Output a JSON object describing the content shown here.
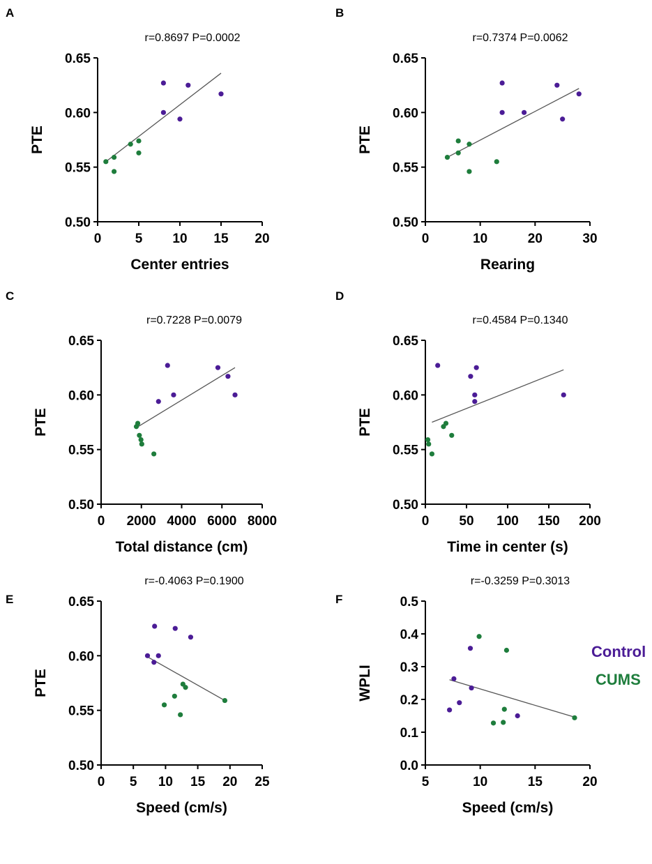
{
  "colors": {
    "control": "#4B1C96",
    "cums": "#1E7D3C",
    "fit_line": "#555555",
    "axis": "#000000"
  },
  "legend": [
    {
      "label": "Control",
      "color": "#4B1C96"
    },
    {
      "label": "CUMS",
      "color": "#1E7D3C"
    }
  ],
  "chart_data": [
    {
      "panel": "A",
      "type": "scatter",
      "title": "r=0.8697   P=0.0002",
      "xlabel": "Center entries",
      "ylabel": "PTE",
      "xlim": [
        0,
        20
      ],
      "ylim": [
        0.5,
        0.65
      ],
      "xticks": [
        0,
        5,
        10,
        15,
        20
      ],
      "yticks": [
        0.5,
        0.55,
        0.6,
        0.65
      ],
      "xtick_labels": [
        "0",
        "5",
        "10",
        "15",
        "20"
      ],
      "ytick_labels": [
        "0.50",
        "0.55",
        "0.60",
        "0.65"
      ],
      "series": [
        {
          "name": "Control",
          "x": [
            8,
            8,
            10,
            11,
            15
          ],
          "y": [
            0.627,
            0.6,
            0.594,
            0.625,
            0.617
          ]
        },
        {
          "name": "CUMS",
          "x": [
            1,
            2,
            2,
            4,
            5,
            5
          ],
          "y": [
            0.555,
            0.559,
            0.546,
            0.571,
            0.574,
            0.563
          ]
        }
      ],
      "fit": {
        "x": [
          1,
          15
        ],
        "y": [
          0.555,
          0.636
        ]
      }
    },
    {
      "panel": "B",
      "type": "scatter",
      "title": "r=0.7374   P=0.0062",
      "xlabel": "Rearing",
      "ylabel": "PTE",
      "xlim": [
        0,
        30
      ],
      "ylim": [
        0.5,
        0.65
      ],
      "xticks": [
        0,
        10,
        20,
        30
      ],
      "yticks": [
        0.5,
        0.55,
        0.6,
        0.65
      ],
      "xtick_labels": [
        "0",
        "10",
        "20",
        "30"
      ],
      "ytick_labels": [
        "0.50",
        "0.55",
        "0.60",
        "0.65"
      ],
      "series": [
        {
          "name": "Control",
          "x": [
            14,
            14,
            18,
            24,
            25,
            28
          ],
          "y": [
            0.627,
            0.6,
            0.6,
            0.625,
            0.594,
            0.617
          ]
        },
        {
          "name": "CUMS",
          "x": [
            4,
            6,
            6,
            8,
            8,
            13
          ],
          "y": [
            0.559,
            0.574,
            0.563,
            0.571,
            0.546,
            0.555
          ]
        }
      ],
      "fit": {
        "x": [
          4,
          28
        ],
        "y": [
          0.559,
          0.622
        ]
      }
    },
    {
      "panel": "C",
      "type": "scatter",
      "title": "r=0.7228   P=0.0079",
      "xlabel": "Total distance (cm)",
      "ylabel": "PTE",
      "xlim": [
        0,
        8000
      ],
      "ylim": [
        0.5,
        0.65
      ],
      "xticks": [
        0,
        2000,
        4000,
        6000,
        8000
      ],
      "yticks": [
        0.5,
        0.55,
        0.6,
        0.65
      ],
      "xtick_labels": [
        "0",
        "2000",
        "4000",
        "6000",
        "8000"
      ],
      "ytick_labels": [
        "0.50",
        "0.55",
        "0.60",
        "0.65"
      ],
      "series": [
        {
          "name": "Control",
          "x": [
            3300,
            2850,
            3600,
            5800,
            6300,
            6650
          ],
          "y": [
            0.627,
            0.594,
            0.6,
            0.625,
            0.617,
            0.6
          ]
        },
        {
          "name": "CUMS",
          "x": [
            1750,
            1820,
            1900,
            1980,
            2020,
            2620
          ],
          "y": [
            0.571,
            0.574,
            0.563,
            0.559,
            0.555,
            0.546
          ]
        }
      ],
      "fit": {
        "x": [
          1750,
          6650
        ],
        "y": [
          0.57,
          0.625
        ]
      }
    },
    {
      "panel": "D",
      "type": "scatter",
      "title": "r=0.4584   P=0.1340",
      "xlabel": "Time in center (s)",
      "ylabel": "PTE",
      "xlim": [
        0,
        200
      ],
      "ylim": [
        0.5,
        0.65
      ],
      "xticks": [
        0,
        50,
        100,
        150,
        200
      ],
      "yticks": [
        0.5,
        0.55,
        0.6,
        0.65
      ],
      "xtick_labels": [
        "0",
        "50",
        "100",
        "150",
        "200"
      ],
      "ytick_labels": [
        "0.50",
        "0.55",
        "0.60",
        "0.65"
      ],
      "series": [
        {
          "name": "Control",
          "x": [
            15,
            55,
            60,
            60,
            62,
            168
          ],
          "y": [
            0.627,
            0.617,
            0.6,
            0.594,
            0.625,
            0.6
          ]
        },
        {
          "name": "CUMS",
          "x": [
            3,
            4,
            8,
            22,
            25,
            32
          ],
          "y": [
            0.559,
            0.555,
            0.546,
            0.571,
            0.574,
            0.563
          ]
        }
      ],
      "fit": {
        "x": [
          8,
          168
        ],
        "y": [
          0.575,
          0.623
        ]
      }
    },
    {
      "panel": "E",
      "type": "scatter",
      "title": "r=-0.4063   P=0.1900",
      "xlabel": "Speed (cm/s)",
      "ylabel": "PTE",
      "xlim": [
        0,
        25
      ],
      "ylim": [
        0.5,
        0.65
      ],
      "xticks": [
        0,
        5,
        10,
        15,
        20,
        25
      ],
      "yticks": [
        0.5,
        0.55,
        0.6,
        0.65
      ],
      "xtick_labels": [
        "0",
        "5",
        "10",
        "15",
        "20",
        "25"
      ],
      "ytick_labels": [
        "0.50",
        "0.55",
        "0.60",
        "0.65"
      ],
      "series": [
        {
          "name": "Control",
          "x": [
            7.2,
            8.2,
            8.3,
            8.9,
            11.5,
            13.9
          ],
          "y": [
            0.6,
            0.594,
            0.627,
            0.6,
            0.625,
            0.617
          ]
        },
        {
          "name": "CUMS",
          "x": [
            9.8,
            11.4,
            12.3,
            12.7,
            13.1,
            19.2
          ],
          "y": [
            0.555,
            0.563,
            0.546,
            0.574,
            0.571,
            0.559
          ]
        }
      ],
      "fit": {
        "x": [
          7.2,
          19.2
        ],
        "y": [
          0.599,
          0.559
        ]
      }
    },
    {
      "panel": "F",
      "type": "scatter",
      "title": "r=-0.3259   P=0.3013",
      "xlabel": "Speed (cm/s)",
      "ylabel": "WPLI",
      "xlim": [
        5,
        20
      ],
      "ylim": [
        0.0,
        0.5
      ],
      "xticks": [
        5,
        10,
        15,
        20
      ],
      "yticks": [
        0.0,
        0.1,
        0.2,
        0.3,
        0.4,
        0.5
      ],
      "xtick_labels": [
        "5",
        "10",
        "15",
        "20"
      ],
      "ytick_labels": [
        "0.0",
        "0.1",
        "0.2",
        "0.3",
        "0.4",
        "0.5"
      ],
      "series": [
        {
          "name": "Control",
          "x": [
            7.2,
            7.6,
            8.1,
            9.1,
            9.2,
            13.4
          ],
          "y": [
            0.168,
            0.263,
            0.19,
            0.356,
            0.235,
            0.15
          ]
        },
        {
          "name": "CUMS",
          "x": [
            9.9,
            11.2,
            12.1,
            12.2,
            12.4,
            18.6
          ],
          "y": [
            0.392,
            0.128,
            0.13,
            0.17,
            0.35,
            0.144
          ]
        }
      ],
      "fit": {
        "x": [
          7.2,
          18.6
        ],
        "y": [
          0.26,
          0.146
        ]
      }
    }
  ]
}
